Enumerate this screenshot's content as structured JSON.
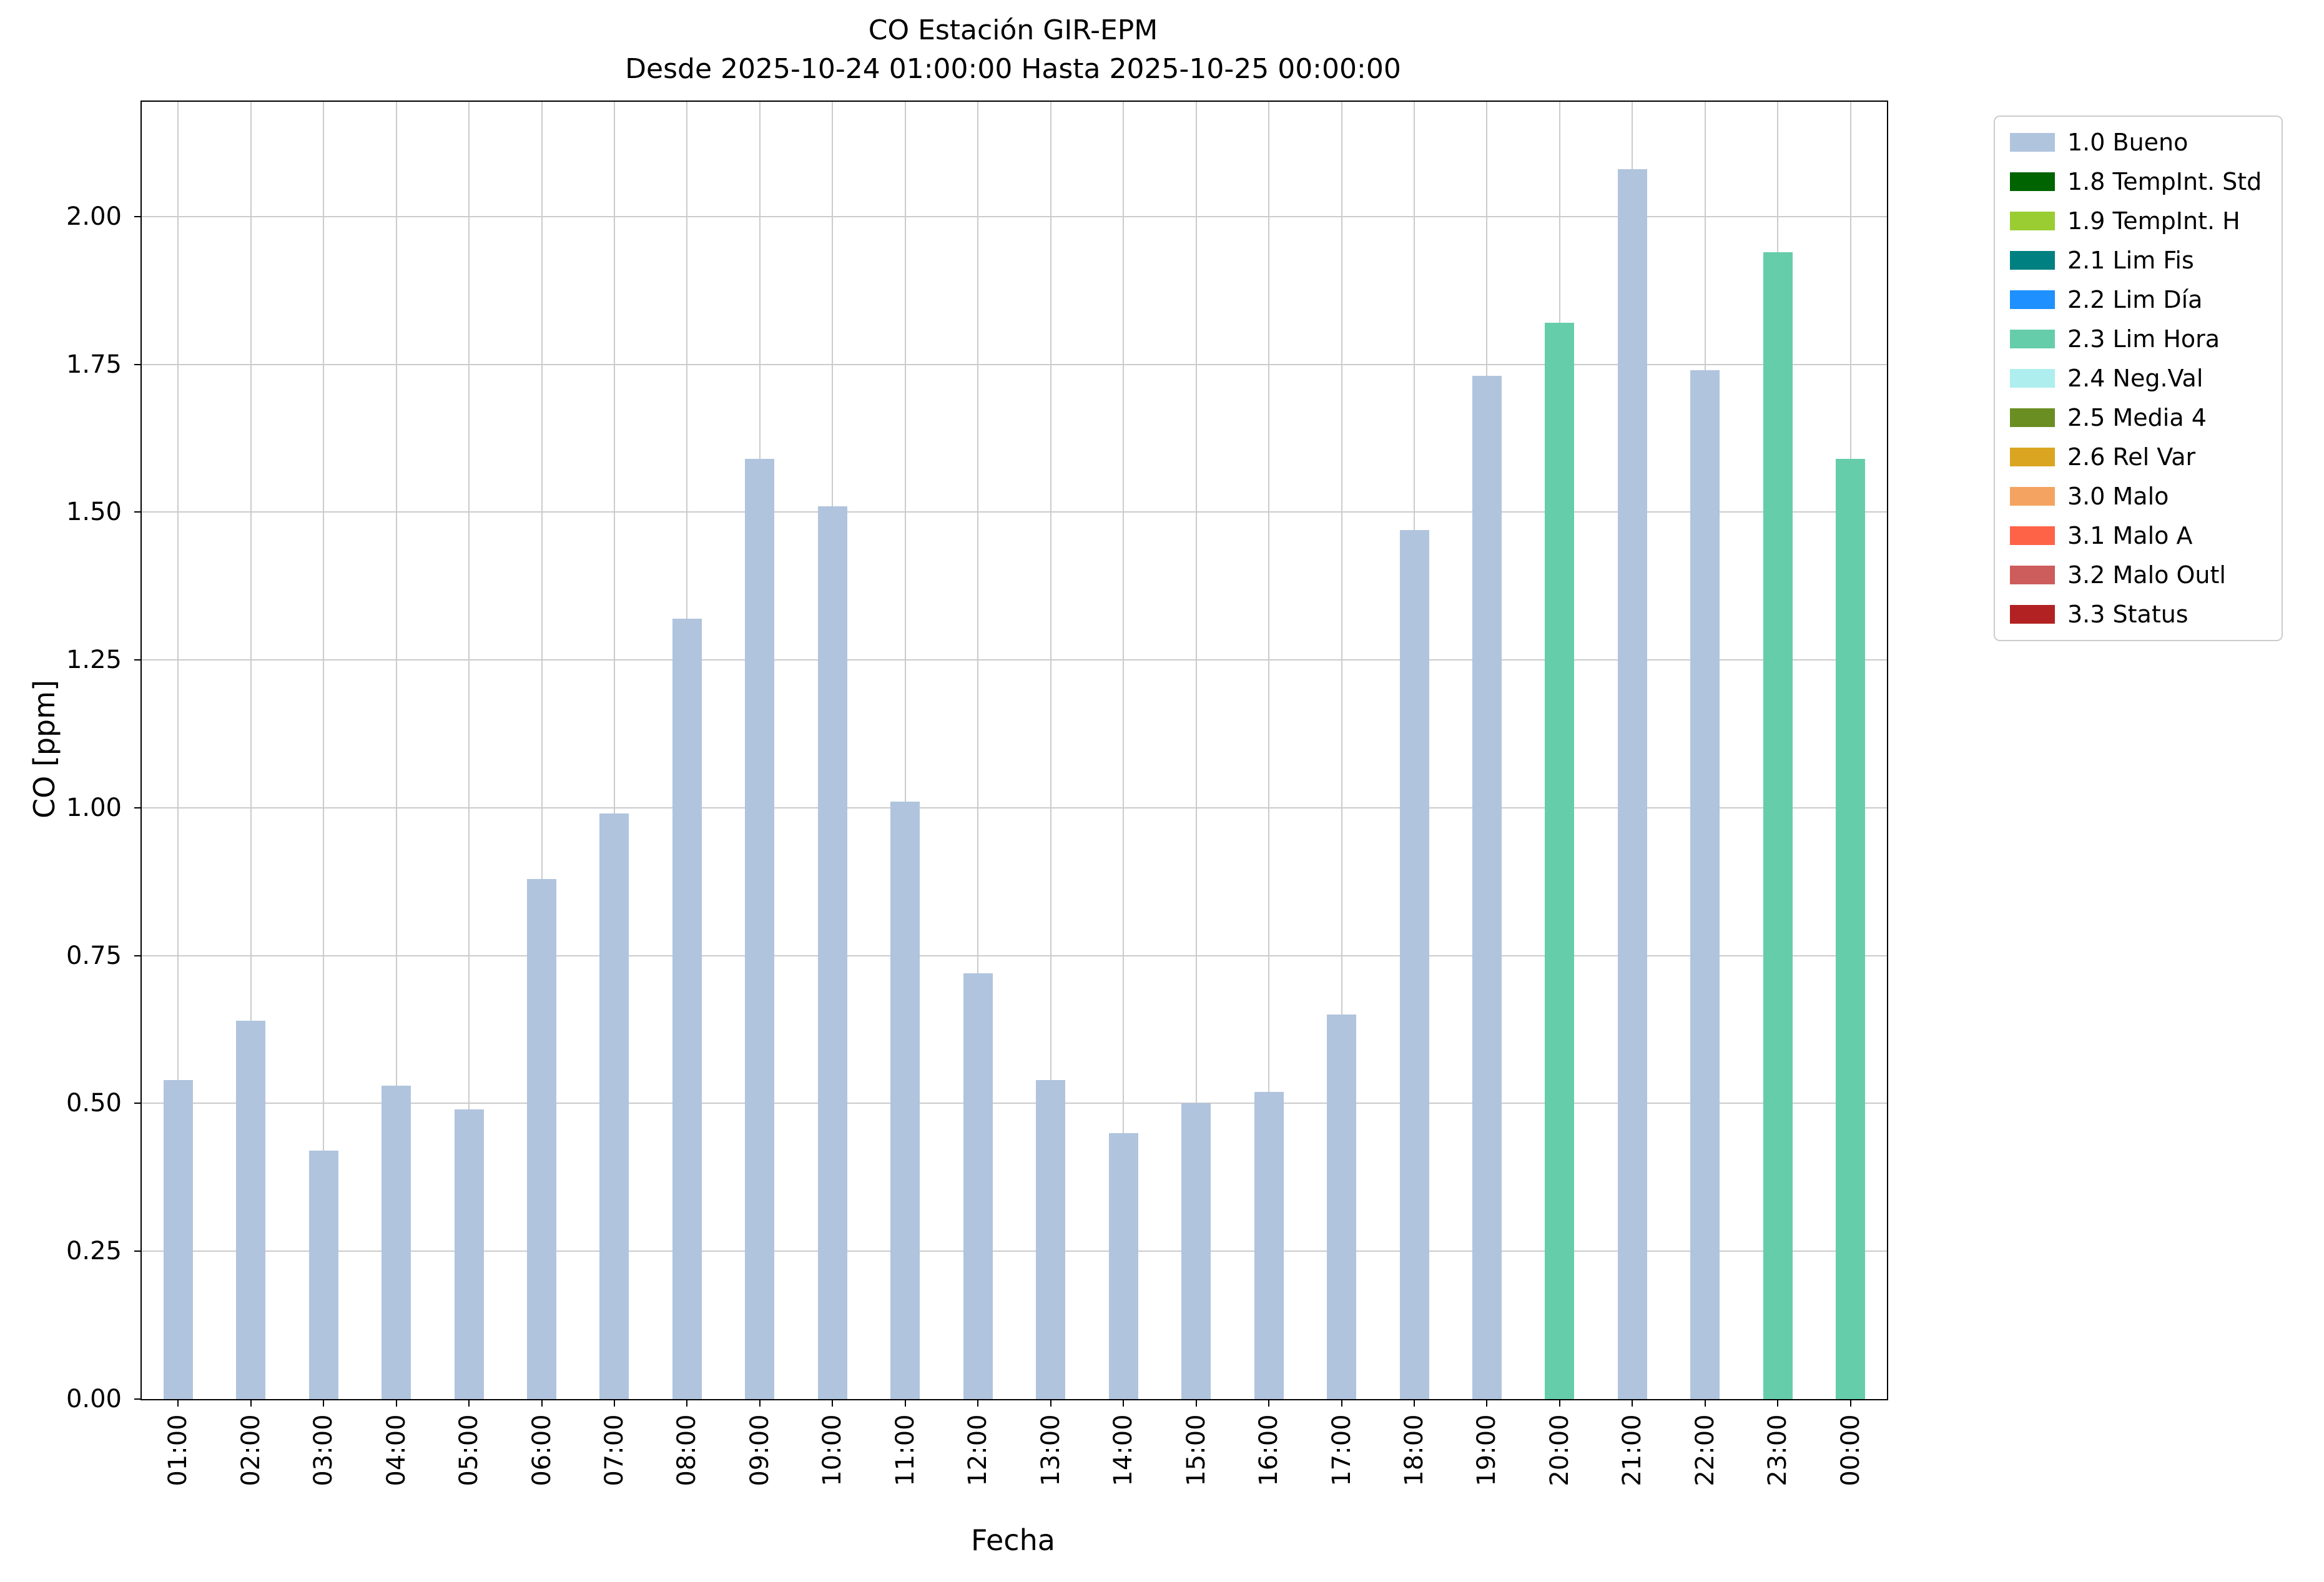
{
  "chart_data": {
    "type": "bar",
    "title": "CO Estación GIR-EPM",
    "subtitle": "Desde 2025-10-24 01:00:00 Hasta 2025-10-25 00:00:00",
    "xlabel": "Fecha",
    "ylabel": "CO [ppm]",
    "ylim": [
      0,
      2.194
    ],
    "yticks": [
      "0.00",
      "0.25",
      "0.50",
      "0.75",
      "1.00",
      "1.25",
      "1.50",
      "1.75",
      "2.00"
    ],
    "grid": true,
    "legend_position": "outside upper right",
    "categories": [
      "01:00",
      "02:00",
      "03:00",
      "04:00",
      "05:00",
      "06:00",
      "07:00",
      "08:00",
      "09:00",
      "10:00",
      "11:00",
      "12:00",
      "13:00",
      "14:00",
      "15:00",
      "16:00",
      "17:00",
      "18:00",
      "19:00",
      "20:00",
      "21:00",
      "22:00",
      "23:00",
      "00:00"
    ],
    "values": [
      0.54,
      0.64,
      0.42,
      0.53,
      0.49,
      0.88,
      0.99,
      1.32,
      1.59,
      1.51,
      1.01,
      0.72,
      0.54,
      0.45,
      0.5,
      0.52,
      0.65,
      1.47,
      1.73,
      1.82,
      2.08,
      1.74,
      1.94,
      1.59
    ],
    "bar_status": [
      "bueno",
      "bueno",
      "bueno",
      "bueno",
      "bueno",
      "bueno",
      "bueno",
      "bueno",
      "bueno",
      "bueno",
      "bueno",
      "bueno",
      "bueno",
      "bueno",
      "bueno",
      "bueno",
      "bueno",
      "bueno",
      "bueno",
      "lim_hora",
      "bueno",
      "bueno",
      "lim_hora",
      "lim_hora"
    ],
    "status_colors": {
      "bueno": "#b0c4de",
      "lim_hora": "#66cdaa"
    },
    "legend": [
      {
        "label": "1.0 Bueno",
        "color": "#b0c4de"
      },
      {
        "label": "1.8 TempInt. Std",
        "color": "#006400"
      },
      {
        "label": "1.9 TempInt. H",
        "color": "#9acd32"
      },
      {
        "label": "2.1 Lim Fis",
        "color": "#008080"
      },
      {
        "label": "2.2 Lim Día",
        "color": "#1e90ff"
      },
      {
        "label": "2.3 Lim Hora",
        "color": "#66cdaa"
      },
      {
        "label": "2.4 Neg.Val",
        "color": "#afeeee"
      },
      {
        "label": "2.5 Media 4",
        "color": "#6b8e23"
      },
      {
        "label": "2.6 Rel Var",
        "color": "#daa520"
      },
      {
        "label": "3.0 Malo",
        "color": "#f4a460"
      },
      {
        "label": "3.1 Malo A",
        "color": "#ff6347"
      },
      {
        "label": "3.2 Malo Outl",
        "color": "#cd5c5c"
      },
      {
        "label": "3.3 Status",
        "color": "#b22222"
      }
    ]
  }
}
